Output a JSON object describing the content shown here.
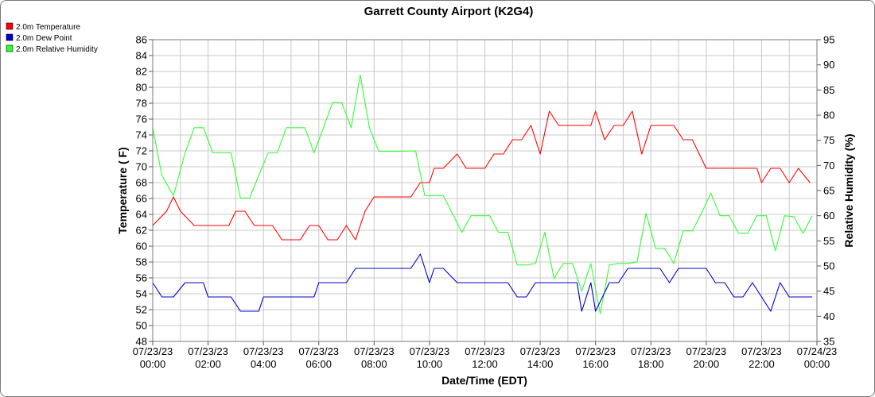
{
  "chart_data": {
    "type": "line",
    "title": "Garrett County Airport (K2G4)",
    "xlabel": "Date/Time (EDT)",
    "ylabel": "Temperature ( F)",
    "y2label": "Relative Humidity (%)",
    "xlim": [
      0,
      24
    ],
    "ylim": [
      48,
      86
    ],
    "y2lim": [
      35,
      95
    ],
    "grid": true,
    "legend_position": "top-left",
    "y_ticks": [
      "48",
      "50",
      "52",
      "54",
      "56",
      "58",
      "60",
      "62",
      "64",
      "66",
      "68",
      "70",
      "72",
      "74",
      "76",
      "78",
      "80",
      "82",
      "84",
      "86"
    ],
    "y2_ticks": [
      "35",
      "40",
      "45",
      "50",
      "55",
      "60",
      "65",
      "70",
      "75",
      "80",
      "85",
      "90",
      "95"
    ],
    "x_ticks": [
      {
        "date": "07/23/23",
        "time": "00:00"
      },
      {
        "date": "07/23/23",
        "time": "02:00"
      },
      {
        "date": "07/23/23",
        "time": "04:00"
      },
      {
        "date": "07/23/23",
        "time": "06:00"
      },
      {
        "date": "07/23/23",
        "time": "08:00"
      },
      {
        "date": "07/23/23",
        "time": "10:00"
      },
      {
        "date": "07/23/23",
        "time": "12:00"
      },
      {
        "date": "07/23/23",
        "time": "14:00"
      },
      {
        "date": "07/23/23",
        "time": "16:00"
      },
      {
        "date": "07/23/23",
        "time": "18:00"
      },
      {
        "date": "07/23/23",
        "time": "20:00"
      },
      {
        "date": "07/23/23",
        "time": "22:00"
      },
      {
        "date": "07/24/23",
        "time": "00:00"
      }
    ],
    "series": [
      {
        "name": "2.0m Temperature",
        "color": "#ff0000",
        "axis": "left",
        "points": [
          [
            0,
            62.6
          ],
          [
            0.5,
            64.4
          ],
          [
            0.75,
            66.2
          ],
          [
            1,
            64.4
          ],
          [
            1.5,
            62.6
          ],
          [
            2,
            62.6
          ],
          [
            2.5,
            62.6
          ],
          [
            2.75,
            62.6
          ],
          [
            3,
            64.4
          ],
          [
            3.33,
            64.4
          ],
          [
            3.67,
            62.6
          ],
          [
            4,
            62.6
          ],
          [
            4.33,
            62.6
          ],
          [
            4.67,
            60.8
          ],
          [
            5,
            60.8
          ],
          [
            5.33,
            60.8
          ],
          [
            5.67,
            62.6
          ],
          [
            6,
            62.6
          ],
          [
            6.33,
            60.8
          ],
          [
            6.67,
            60.8
          ],
          [
            7,
            62.6
          ],
          [
            7.33,
            60.8
          ],
          [
            7.67,
            64.4
          ],
          [
            8,
            66.2
          ],
          [
            8.5,
            66.2
          ],
          [
            9,
            66.2
          ],
          [
            9.33,
            66.2
          ],
          [
            9.67,
            68
          ],
          [
            10,
            68
          ],
          [
            10.17,
            69.8
          ],
          [
            10.5,
            69.8
          ],
          [
            11,
            71.6
          ],
          [
            11.33,
            69.8
          ],
          [
            11.67,
            69.8
          ],
          [
            12,
            69.8
          ],
          [
            12.33,
            71.6
          ],
          [
            12.67,
            71.6
          ],
          [
            13,
            73.4
          ],
          [
            13.33,
            73.4
          ],
          [
            13.67,
            75.2
          ],
          [
            14,
            71.6
          ],
          [
            14.33,
            77
          ],
          [
            14.67,
            75.2
          ],
          [
            15,
            75.2
          ],
          [
            15.5,
            75.2
          ],
          [
            15.83,
            75.2
          ],
          [
            16,
            77
          ],
          [
            16.33,
            73.4
          ],
          [
            16.67,
            75.2
          ],
          [
            17,
            75.2
          ],
          [
            17.33,
            77
          ],
          [
            17.67,
            71.6
          ],
          [
            18,
            75.2
          ],
          [
            18.5,
            75.2
          ],
          [
            18.83,
            75.2
          ],
          [
            19.17,
            73.4
          ],
          [
            19.5,
            73.4
          ],
          [
            20,
            69.8
          ],
          [
            20.5,
            69.8
          ],
          [
            21,
            69.8
          ],
          [
            21.5,
            69.8
          ],
          [
            21.83,
            69.8
          ],
          [
            22,
            68
          ],
          [
            22.33,
            69.8
          ],
          [
            22.67,
            69.8
          ],
          [
            23,
            68
          ],
          [
            23.33,
            69.8
          ],
          [
            23.75,
            68
          ]
        ]
      },
      {
        "name": "2.0m Dew Point",
        "color": "#0000cc",
        "axis": "left",
        "points": [
          [
            0,
            55.4
          ],
          [
            0.33,
            53.6
          ],
          [
            0.75,
            53.6
          ],
          [
            1.17,
            55.4
          ],
          [
            1.5,
            55.4
          ],
          [
            1.83,
            55.4
          ],
          [
            2,
            53.6
          ],
          [
            2.5,
            53.6
          ],
          [
            2.83,
            53.6
          ],
          [
            3.17,
            51.8
          ],
          [
            3.5,
            51.8
          ],
          [
            3.83,
            51.8
          ],
          [
            4,
            53.6
          ],
          [
            4.5,
            53.6
          ],
          [
            5,
            53.6
          ],
          [
            5.5,
            53.6
          ],
          [
            5.83,
            53.6
          ],
          [
            6,
            55.4
          ],
          [
            6.5,
            55.4
          ],
          [
            7,
            55.4
          ],
          [
            7.33,
            57.2
          ],
          [
            7.67,
            57.2
          ],
          [
            8,
            57.2
          ],
          [
            8.5,
            57.2
          ],
          [
            9,
            57.2
          ],
          [
            9.33,
            57.2
          ],
          [
            9.67,
            59
          ],
          [
            10,
            55.4
          ],
          [
            10.17,
            57.2
          ],
          [
            10.5,
            57.2
          ],
          [
            11,
            55.4
          ],
          [
            11.5,
            55.4
          ],
          [
            12,
            55.4
          ],
          [
            12.5,
            55.4
          ],
          [
            12.83,
            55.4
          ],
          [
            13.17,
            53.6
          ],
          [
            13.5,
            53.6
          ],
          [
            13.83,
            55.4
          ],
          [
            14.17,
            55.4
          ],
          [
            14.5,
            55.4
          ],
          [
            15,
            55.4
          ],
          [
            15.33,
            55.4
          ],
          [
            15.5,
            51.8
          ],
          [
            15.83,
            55.4
          ],
          [
            16,
            51.8
          ],
          [
            16.5,
            55.4
          ],
          [
            16.83,
            55.4
          ],
          [
            17.17,
            57.2
          ],
          [
            17.5,
            57.2
          ],
          [
            18,
            57.2
          ],
          [
            18.33,
            57.2
          ],
          [
            18.67,
            55.4
          ],
          [
            19,
            57.2
          ],
          [
            19.5,
            57.2
          ],
          [
            20,
            57.2
          ],
          [
            20.33,
            55.4
          ],
          [
            20.67,
            55.4
          ],
          [
            21,
            53.6
          ],
          [
            21.33,
            53.6
          ],
          [
            21.67,
            55.4
          ],
          [
            22,
            53.6
          ],
          [
            22.33,
            51.8
          ],
          [
            22.67,
            55.4
          ],
          [
            23,
            53.6
          ],
          [
            23.5,
            53.6
          ],
          [
            23.83,
            53.6
          ]
        ]
      },
      {
        "name": "2.0m Relative Humidity",
        "color": "#33ff33",
        "axis": "right",
        "points": [
          [
            0,
            77.5
          ],
          [
            0.33,
            68
          ],
          [
            0.75,
            64
          ],
          [
            1.17,
            72.5
          ],
          [
            1.5,
            77.5
          ],
          [
            1.83,
            77.5
          ],
          [
            2.17,
            72.5
          ],
          [
            2.5,
            72.5
          ],
          [
            2.83,
            72.5
          ],
          [
            3.17,
            63.5
          ],
          [
            3.5,
            63.5
          ],
          [
            3.83,
            68
          ],
          [
            4.17,
            72.5
          ],
          [
            4.5,
            72.5
          ],
          [
            4.83,
            77.5
          ],
          [
            5.17,
            77.5
          ],
          [
            5.5,
            77.5
          ],
          [
            5.83,
            72.5
          ],
          [
            6.17,
            77.5
          ],
          [
            6.5,
            82.5
          ],
          [
            6.83,
            82.5
          ],
          [
            7.17,
            77.5
          ],
          [
            7.5,
            88
          ],
          [
            7.83,
            77.5
          ],
          [
            8.17,
            72.8
          ],
          [
            8.5,
            72.8
          ],
          [
            9,
            72.8
          ],
          [
            9.5,
            72.9
          ],
          [
            9.83,
            64
          ],
          [
            10.17,
            64
          ],
          [
            10.5,
            64
          ],
          [
            11.17,
            56.7
          ],
          [
            11.5,
            60
          ],
          [
            11.83,
            60
          ],
          [
            12.17,
            60
          ],
          [
            12.5,
            56.7
          ],
          [
            12.83,
            56.7
          ],
          [
            13.17,
            50.2
          ],
          [
            13.5,
            50.2
          ],
          [
            13.83,
            50.5
          ],
          [
            14.17,
            56.7
          ],
          [
            14.5,
            47.5
          ],
          [
            14.83,
            50.5
          ],
          [
            15.17,
            50.5
          ],
          [
            15.5,
            45
          ],
          [
            15.83,
            50.5
          ],
          [
            16.17,
            40.5
          ],
          [
            16.5,
            50.2
          ],
          [
            16.83,
            50.5
          ],
          [
            17.17,
            50.5
          ],
          [
            17.5,
            50.8
          ],
          [
            17.83,
            60.5
          ],
          [
            18.17,
            53.5
          ],
          [
            18.5,
            53.5
          ],
          [
            18.83,
            50.5
          ],
          [
            19.17,
            57
          ],
          [
            19.5,
            57
          ],
          [
            19.83,
            60.5
          ],
          [
            20.17,
            64.5
          ],
          [
            20.5,
            60
          ],
          [
            20.83,
            60
          ],
          [
            21.17,
            56.5
          ],
          [
            21.5,
            56.5
          ],
          [
            21.83,
            60
          ],
          [
            22.17,
            60
          ],
          [
            22.5,
            53
          ],
          [
            22.83,
            60
          ],
          [
            23.17,
            59.8
          ],
          [
            23.5,
            56.5
          ],
          [
            23.83,
            60
          ]
        ]
      }
    ]
  }
}
